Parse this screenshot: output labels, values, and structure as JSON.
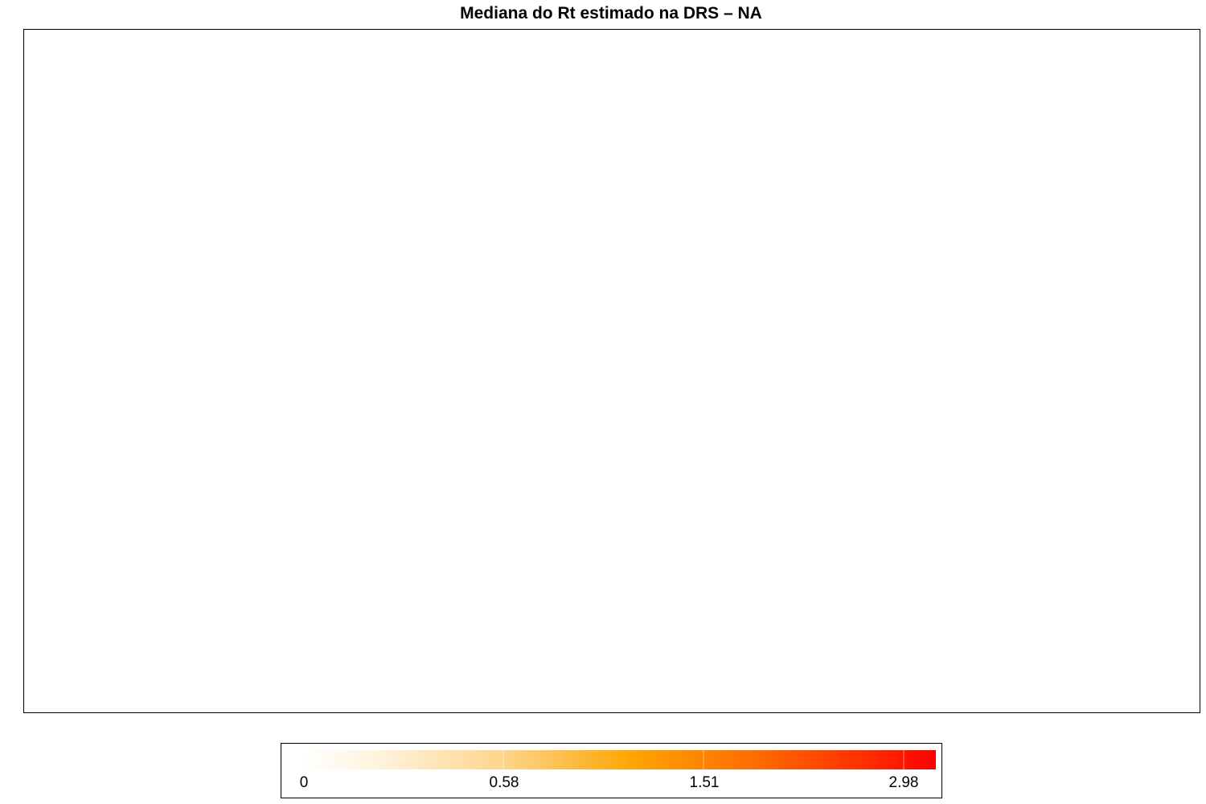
{
  "title": "Mediana do Rt estimado na DRS – NA",
  "legend": {
    "labels": [
      "0",
      "0.58",
      "1.51",
      "2.98"
    ],
    "colors": [
      "#fffcf5",
      "#fdd48a",
      "#ffa500",
      "#ff6a00",
      "#ff0000"
    ]
  }
}
